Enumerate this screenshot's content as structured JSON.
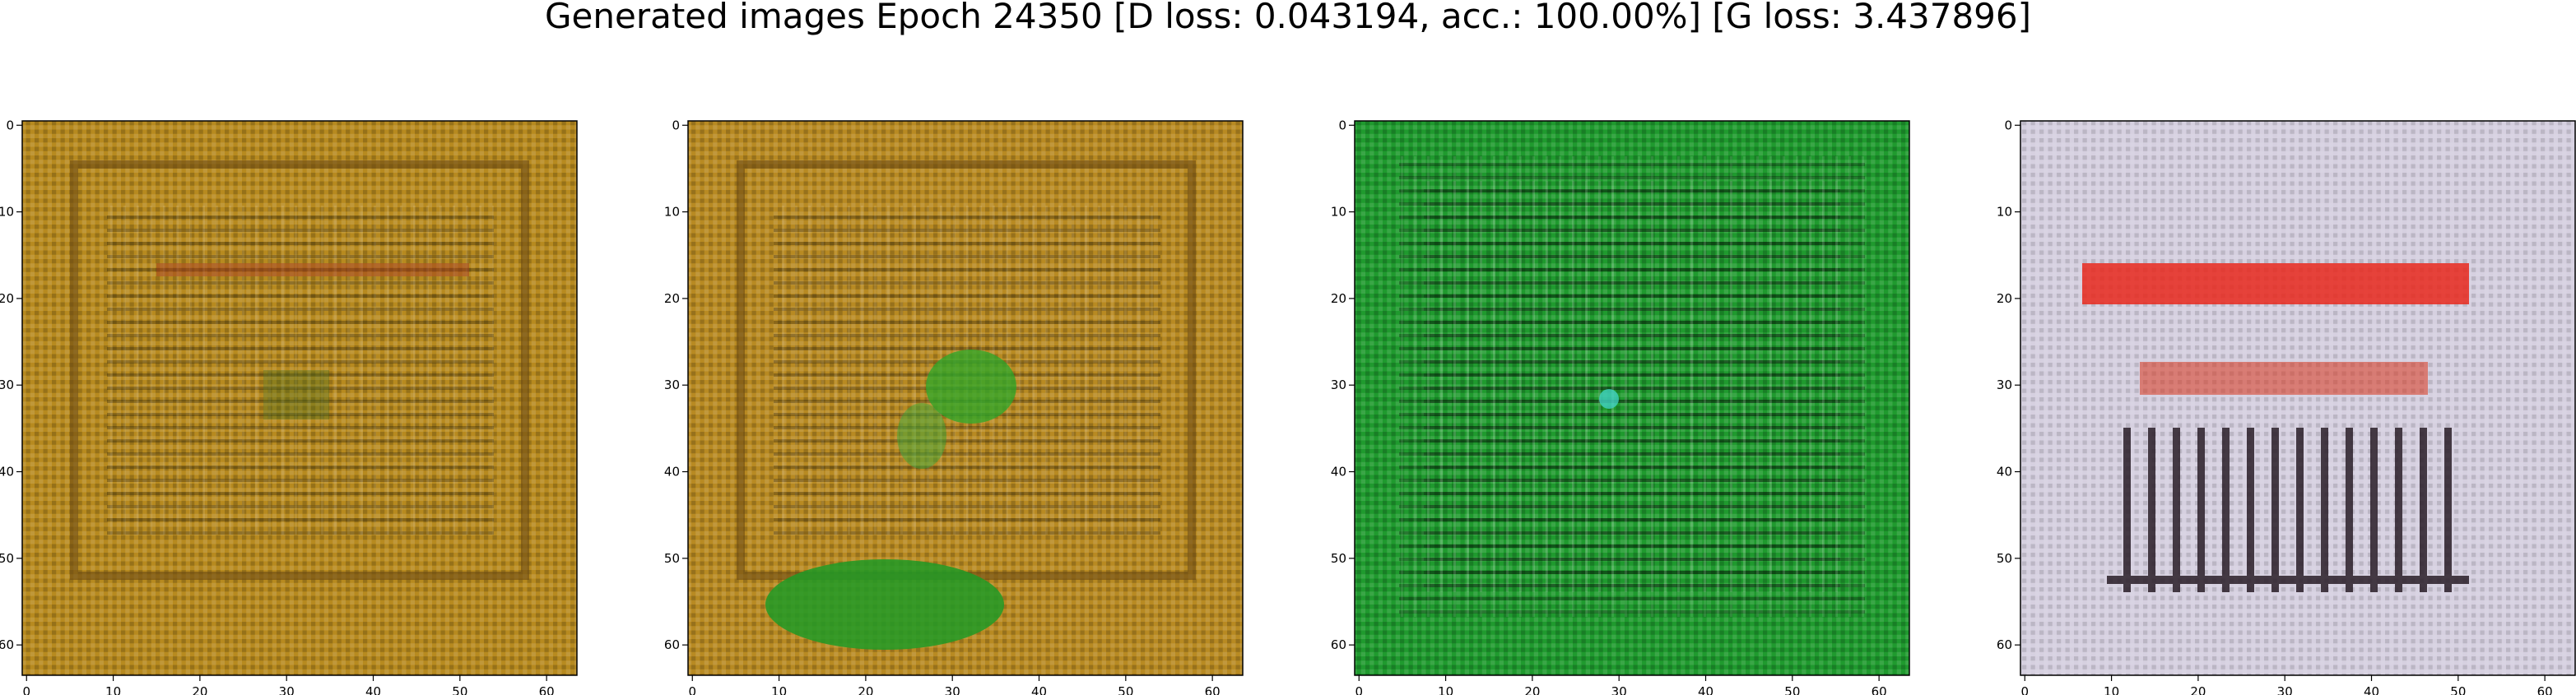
{
  "figure": {
    "title": "Generated images Epoch 24350 [D loss: 0.043194, acc.: 100.00%] [G loss: 3.437896]"
  },
  "axes_ticks": {
    "x": [
      "0",
      "10",
      "20",
      "30",
      "40",
      "50",
      "60"
    ],
    "y": [
      "0",
      "10",
      "20",
      "30",
      "40",
      "50",
      "60"
    ]
  },
  "panels": [
    {
      "image": "generated-sample-1",
      "dominant_color": "#b78a1f",
      "description_colors": {
        "base": "#b78a1f",
        "dark": "#5b4210",
        "light": "#d9b050",
        "accent": "#c8402a"
      }
    },
    {
      "image": "generated-sample-2",
      "dominant_color": "#b88a22",
      "description_colors": {
        "base": "#b88a22",
        "dark": "#5e4411",
        "light": "#dbb255",
        "accent": "#2aa02a"
      }
    },
    {
      "image": "generated-sample-3",
      "dominant_color": "#1f9a2e",
      "description_colors": {
        "base": "#1f9a2e",
        "dark": "#0b3a12",
        "light": "#6fe070",
        "accent": "#40d0c0"
      }
    },
    {
      "image": "generated-sample-4",
      "dominant_color": "#d6d0e0",
      "description_colors": {
        "base": "#d6d0e0",
        "dark": "#2a1e28",
        "light": "#f2eef5",
        "accent": "#e8201c"
      }
    }
  ]
}
